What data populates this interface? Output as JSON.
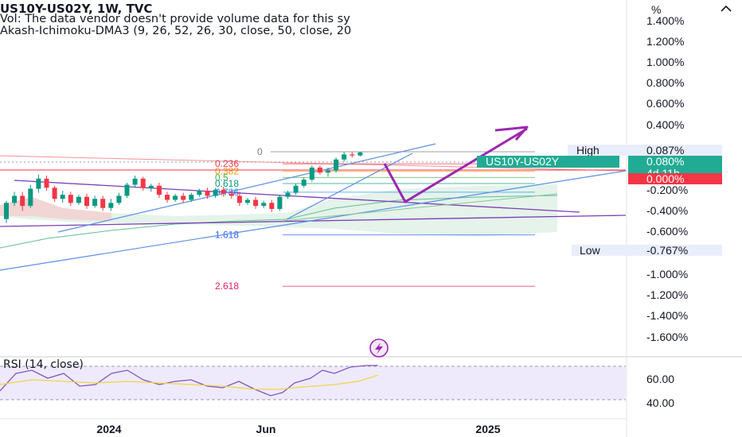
{
  "header": {
    "title": "US10Y-US02Y, 1W, TVC",
    "vol_text": "Vol: The data vendor doesn't provide volume data for this sy",
    "indicator_text": "Akash-Ichimoku-DMA3 (9, 26, 52, 26, 30, close, 50, close, 20"
  },
  "axis": {
    "unit": "%"
  },
  "price_tags": {
    "high_label": "High",
    "high_value": "0.087%",
    "symbol_label": "US10Y-US02Y",
    "last_value": "0.080%",
    "countdown": "4d 11h",
    "zero_value": "0.000%",
    "low_label": "Low",
    "low_value": "-0.767%"
  },
  "rsi": {
    "label": "RSI (14, close)",
    "ticks": [
      "60.00",
      "40.00"
    ]
  },
  "colors": {
    "up": "#089981",
    "down": "#f23645",
    "fib_line": "#5b8fe6",
    "channel": "#7b3fb5",
    "arrow": "#9c27b0",
    "last_bg": "#22ab94",
    "zero_bg": "#f23645",
    "rsi_line": "#7e57c2",
    "rsi_ma": "#f0d44a"
  },
  "chart_data": {
    "type": "candlestick",
    "title": "US10Y-US02Y, 1W, TVC",
    "y_unit": "%",
    "y_ticks": [
      "1.400%",
      "1.200%",
      "1.000%",
      "0.800%",
      "0.600%",
      "0.400%",
      "-0.200%",
      "-0.400%",
      "-0.600%",
      "-1.000%",
      "-1.200%",
      "-1.400%",
      "-1.600%"
    ],
    "x_ticks": [
      "2024",
      "Jun",
      "2025"
    ],
    "fib_levels": [
      {
        "label": "0",
        "value": 0.087
      },
      {
        "label": "0.236",
        "value": -0.033
      },
      {
        "label": "0.382",
        "value": -0.108
      },
      {
        "label": "0.5",
        "value": -0.168
      },
      {
        "label": "0.618",
        "value": -0.228
      },
      {
        "label": "0.786",
        "value": -0.314
      },
      {
        "label": "1.618",
        "value": -0.737
      },
      {
        "label": "2.618",
        "value": -1.246
      }
    ],
    "candles": [
      [
        -0.58,
        -0.4,
        -0.62,
        -0.42
      ],
      [
        -0.42,
        -0.31,
        -0.45,
        -0.35
      ],
      [
        -0.35,
        -0.31,
        -0.5,
        -0.45
      ],
      [
        -0.45,
        -0.24,
        -0.47,
        -0.28
      ],
      [
        -0.28,
        -0.14,
        -0.32,
        -0.18
      ],
      [
        -0.18,
        -0.15,
        -0.3,
        -0.27
      ],
      [
        -0.27,
        -0.25,
        -0.41,
        -0.38
      ],
      [
        -0.38,
        -0.3,
        -0.42,
        -0.34
      ],
      [
        -0.34,
        -0.31,
        -0.45,
        -0.42
      ],
      [
        -0.42,
        -0.34,
        -0.44,
        -0.36
      ],
      [
        -0.36,
        -0.33,
        -0.48,
        -0.45
      ],
      [
        -0.45,
        -0.35,
        -0.47,
        -0.38
      ],
      [
        -0.38,
        -0.35,
        -0.5,
        -0.47
      ],
      [
        -0.47,
        -0.38,
        -0.5,
        -0.42
      ],
      [
        -0.42,
        -0.32,
        -0.44,
        -0.35
      ],
      [
        -0.35,
        -0.22,
        -0.37,
        -0.24
      ],
      [
        -0.24,
        -0.15,
        -0.26,
        -0.18
      ],
      [
        -0.18,
        -0.16,
        -0.3,
        -0.27
      ],
      [
        -0.27,
        -0.23,
        -0.31,
        -0.25
      ],
      [
        -0.25,
        -0.22,
        -0.37,
        -0.34
      ],
      [
        -0.34,
        -0.31,
        -0.42,
        -0.39
      ],
      [
        -0.39,
        -0.33,
        -0.41,
        -0.35
      ],
      [
        -0.35,
        -0.32,
        -0.42,
        -0.39
      ],
      [
        -0.39,
        -0.32,
        -0.41,
        -0.34
      ],
      [
        -0.34,
        -0.28,
        -0.36,
        -0.3
      ],
      [
        -0.3,
        -0.27,
        -0.38,
        -0.35
      ],
      [
        -0.35,
        -0.27,
        -0.37,
        -0.29
      ],
      [
        -0.29,
        -0.26,
        -0.36,
        -0.33
      ],
      [
        -0.33,
        -0.29,
        -0.38,
        -0.35
      ],
      [
        -0.35,
        -0.31,
        -0.45,
        -0.42
      ],
      [
        -0.42,
        -0.37,
        -0.44,
        -0.39
      ],
      [
        -0.39,
        -0.36,
        -0.48,
        -0.45
      ],
      [
        -0.45,
        -0.4,
        -0.47,
        -0.42
      ],
      [
        -0.42,
        -0.39,
        -0.51,
        -0.48
      ],
      [
        -0.48,
        -0.34,
        -0.5,
        -0.36
      ],
      [
        -0.36,
        -0.3,
        -0.38,
        -0.32
      ],
      [
        -0.32,
        -0.23,
        -0.34,
        -0.25
      ],
      [
        -0.25,
        -0.17,
        -0.27,
        -0.19
      ],
      [
        -0.19,
        -0.05,
        -0.21,
        -0.07
      ],
      [
        -0.07,
        -0.05,
        -0.14,
        -0.12
      ],
      [
        -0.12,
        -0.07,
        -0.16,
        -0.1
      ],
      [
        -0.1,
        0.03,
        -0.12,
        0.01
      ],
      [
        0.01,
        0.087,
        -0.01,
        0.06
      ],
      [
        0.06,
        0.087,
        0.03,
        0.05
      ],
      [
        0.05,
        0.087,
        0.04,
        0.08
      ]
    ]
  }
}
